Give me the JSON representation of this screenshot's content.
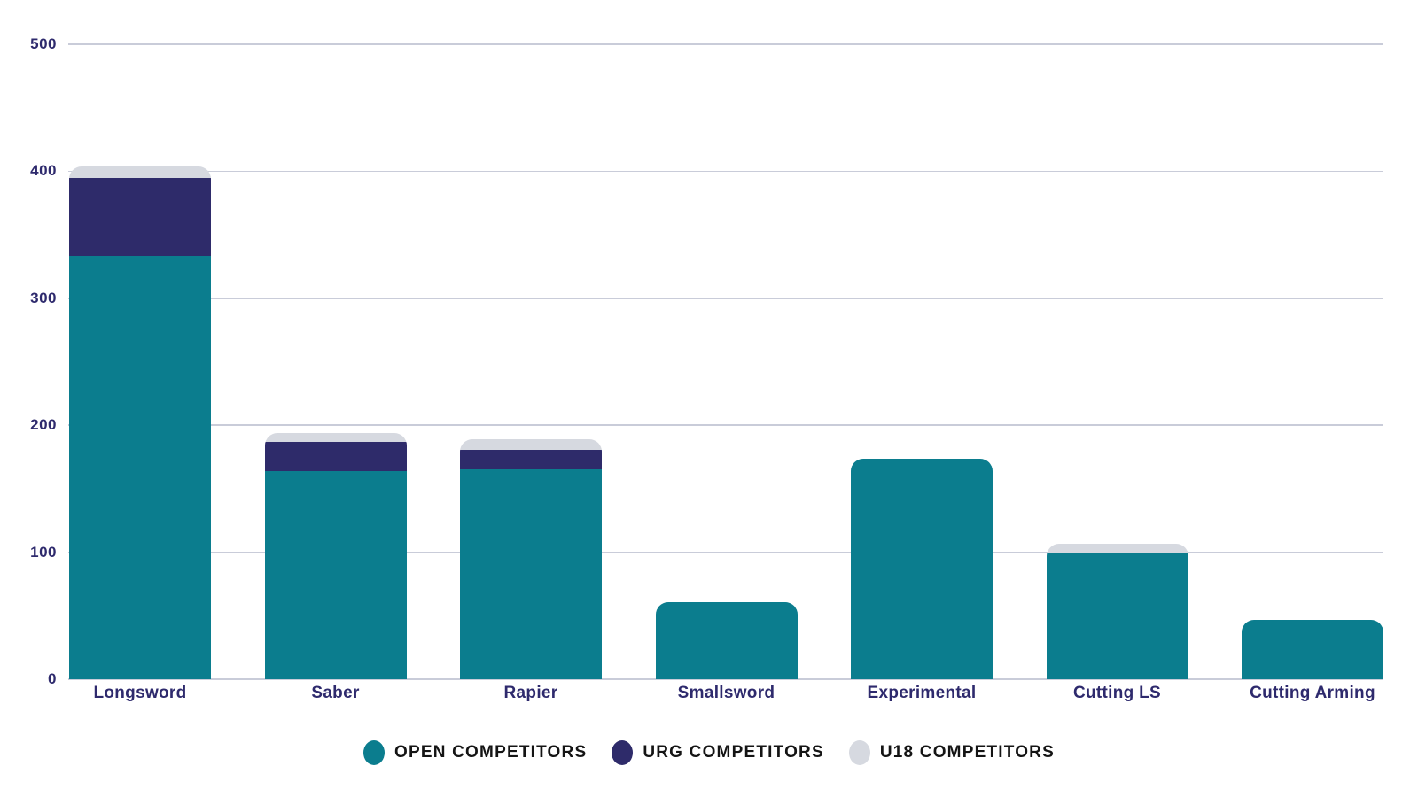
{
  "chart_data": {
    "type": "bar",
    "stacked": true,
    "title": "",
    "xlabel": "",
    "ylabel": "",
    "categories": [
      "Longsword",
      "Saber",
      "Rapier",
      "Smallsword",
      "Experimental",
      "Cutting LS",
      "Cutting Arming"
    ],
    "series": [
      {
        "name": "OPEN COMPETITORS",
        "color": "#0B7D8E",
        "values": [
          333,
          164,
          165,
          61,
          174,
          100,
          47
        ]
      },
      {
        "name": "URG COMPETITORS",
        "color": "#2E2B6A",
        "values": [
          62,
          23,
          16,
          0,
          0,
          0,
          0
        ]
      },
      {
        "name": "U18 COMPETITORS",
        "color": "#D6D9E0",
        "values": [
          9,
          7,
          8,
          0,
          0,
          7,
          0
        ]
      }
    ],
    "yticks": [
      0,
      100,
      200,
      300,
      400,
      500
    ],
    "ylim": [
      0,
      500
    ],
    "grid": true,
    "legend_position": "bottom"
  },
  "colors": {
    "open_series": "#0B7D8E",
    "urg_series": "#2E2B6A",
    "u18_series": "#D6D9E0",
    "gridline": "#C9CCD9",
    "axis_label": "#2E2A6D",
    "legend_text": "#141414",
    "background": "#FFFFFF"
  }
}
